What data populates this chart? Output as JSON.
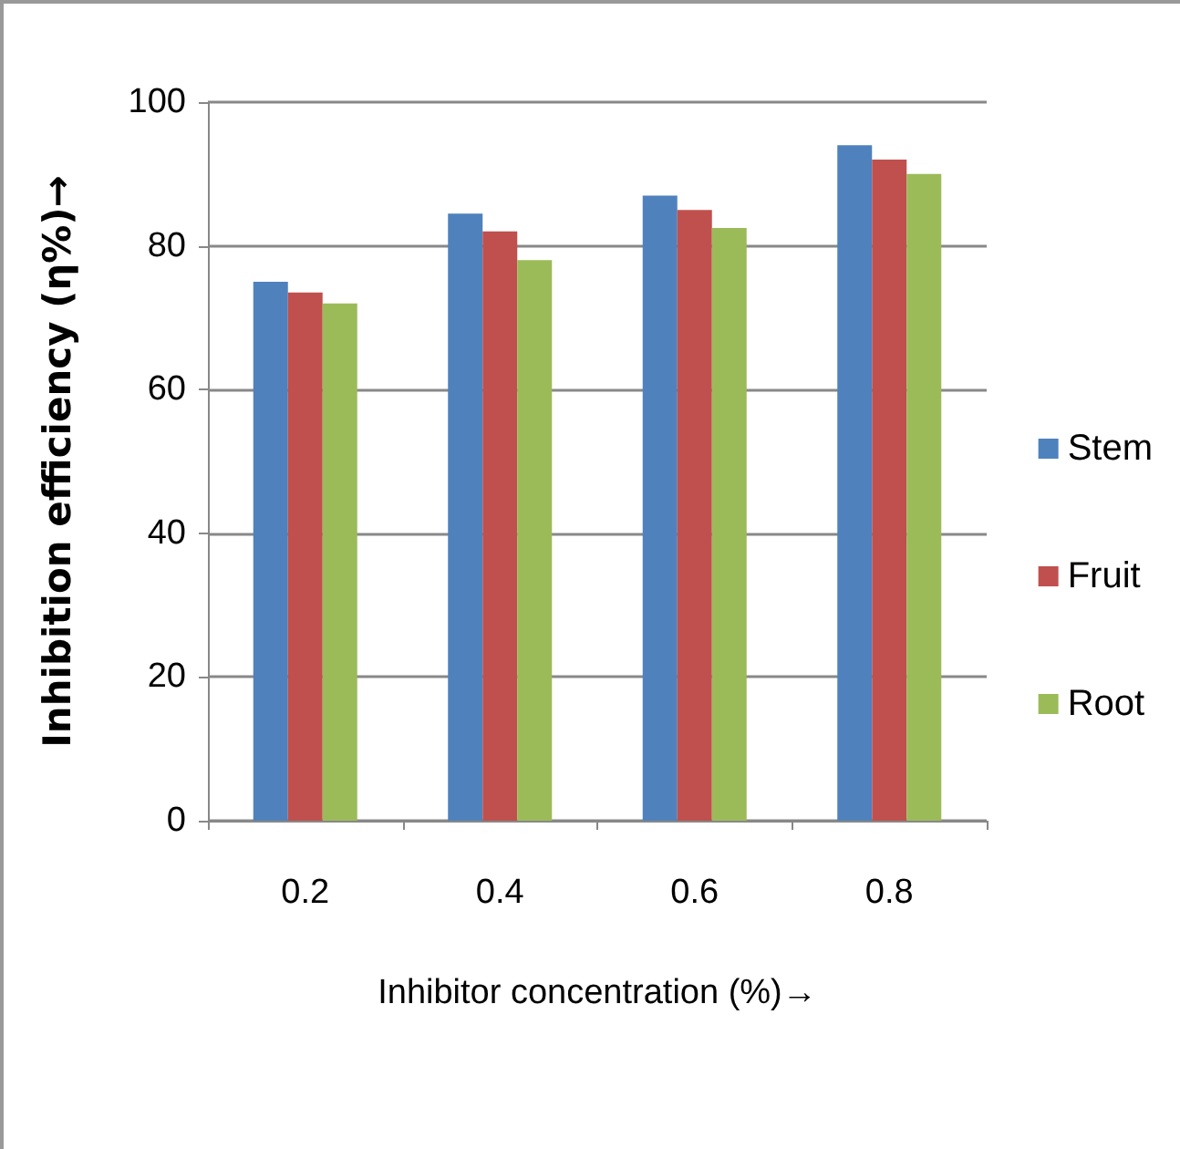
{
  "chart_data": {
    "type": "bar",
    "xlabel": "Inhibitor concentration (%)→",
    "ylabel": "Inhibition efficiency (η%)→",
    "categories": [
      "0.2",
      "0.4",
      "0.6",
      "0.8"
    ],
    "series": [
      {
        "name": "Stem",
        "color": "#4f81bd",
        "values": [
          75,
          84.5,
          87,
          94
        ]
      },
      {
        "name": "Fruit",
        "color": "#c0504d",
        "values": [
          73.5,
          82,
          85,
          92
        ]
      },
      {
        "name": "Root",
        "color": "#9bbb59",
        "values": [
          72,
          78,
          82.5,
          90
        ]
      }
    ],
    "ylim": [
      0,
      100
    ],
    "yticks": [
      0,
      20,
      40,
      60,
      80,
      100
    ],
    "grid": "y",
    "legend": "right"
  }
}
